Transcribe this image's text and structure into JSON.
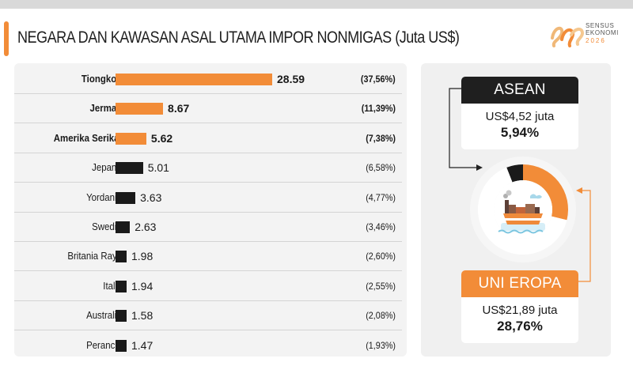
{
  "header": {
    "title": "NEGARA DAN KAWASAN ASAL UTAMA IMPOR NONMIGAS (Juta US$)",
    "logo_line1": "SENSUS",
    "logo_line2": "EKONOMI",
    "logo_line3": "2026"
  },
  "colors": {
    "accent": "#f28c38",
    "dark": "#1a1a1a",
    "top_bar": "#f28c38",
    "other_bar": "#1a1a1a"
  },
  "chart_data": [
    {
      "type": "bar",
      "orientation": "horizontal",
      "title": "NEGARA DAN KAWASAN ASAL UTAMA IMPOR NONMIGAS (Juta US$)",
      "categories": [
        "Tiongkok",
        "Jerman",
        "Amerika Serikat",
        "Jepang",
        "Yordania",
        "Swedia",
        "Britania Raya",
        "Italia",
        "Australia",
        "Perancis"
      ],
      "values": [
        28.59,
        8.67,
        5.62,
        5.01,
        3.63,
        2.63,
        1.98,
        1.94,
        1.58,
        1.47
      ],
      "value_labels": [
        "28.59",
        "8.67",
        "5.62",
        "5.01",
        "3.63",
        "2.63",
        "1.98",
        "1.94",
        "1.58",
        "1.47"
      ],
      "share_labels": [
        "(37,56%)",
        "(11,39%)",
        "(7,38%)",
        "(6,58%)",
        "(4,77%)",
        "(3,46%)",
        "(2,60%)",
        "(2,55%)",
        "(2,08%)",
        "(1,93%)"
      ],
      "highlight_count": 3,
      "bar_colors": [
        "#f28c38",
        "#f28c38",
        "#f28c38",
        "#1a1a1a",
        "#1a1a1a",
        "#1a1a1a",
        "#1a1a1a",
        "#1a1a1a",
        "#1a1a1a",
        "#1a1a1a"
      ],
      "xlim": [
        0,
        28.59
      ],
      "grid": false
    },
    {
      "type": "pie",
      "style": "donut",
      "slices": [
        {
          "name": "ASEAN",
          "value": 5.94,
          "color": "#1a1a1a"
        },
        {
          "name": "UNI EROPA",
          "value": 28.76,
          "color": "#f28c38"
        },
        {
          "name": "",
          "value": 65.3,
          "color": "#ffffff"
        }
      ]
    }
  ],
  "regions": {
    "asean": {
      "name": "ASEAN",
      "value_text": "US$4,52 juta",
      "share_text": "5,94%",
      "head_color": "#1f1f1f",
      "head_text_color": "#ffffff"
    },
    "eu": {
      "name": "UNI EROPA",
      "value_text": "US$21,89 juta",
      "share_text": "28,76%",
      "head_color": "#f28c38",
      "head_text_color": "#ffffff"
    }
  },
  "icons": {
    "center": "cargo-ship-icon",
    "logo": "sensus-ekonomi-logo-icon"
  }
}
